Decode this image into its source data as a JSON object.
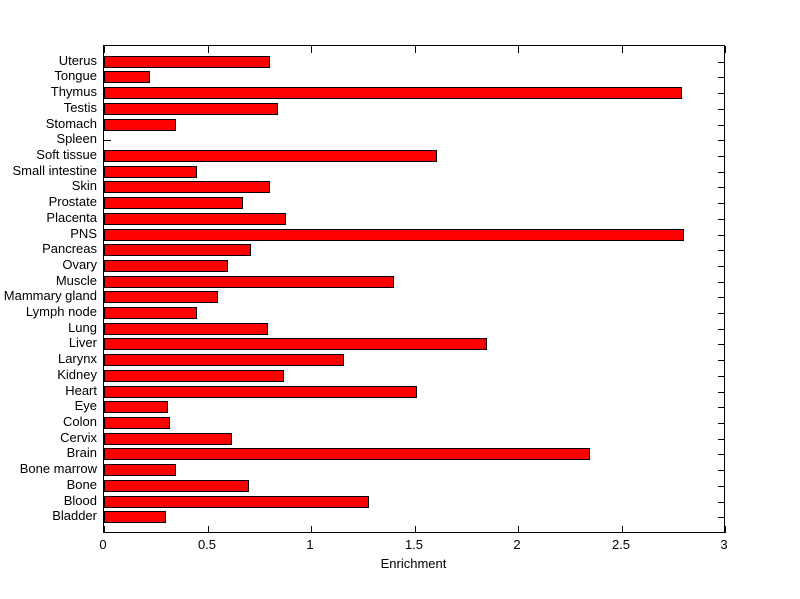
{
  "chart_data": {
    "type": "bar",
    "orientation": "horizontal",
    "title": "",
    "xlabel": "Enrichment",
    "ylabel": "",
    "xlim": [
      0,
      3
    ],
    "xticks": [
      0,
      0.5,
      1,
      1.5,
      2,
      2.5,
      3
    ],
    "xtick_labels": [
      "0",
      "0.5",
      "1",
      "1.5",
      "2",
      "2.5",
      "3"
    ],
    "grid": false,
    "legend_position": "none",
    "bar_color": "#ff0000",
    "bar_edge_color": "#000000",
    "axis_color": "#000000",
    "background_color": "#ffffff",
    "categories": [
      "Uterus",
      "Tongue",
      "Thymus",
      "Testis",
      "Stomach",
      "Spleen",
      "Soft tissue",
      "Small intestine",
      "Skin",
      "Prostate",
      "Placenta",
      "PNS",
      "Pancreas",
      "Ovary",
      "Muscle",
      "Mammary gland",
      "Lymph node",
      "Lung",
      "Liver",
      "Larynx",
      "Kidney",
      "Heart",
      "Eye",
      "Colon",
      "Cervix",
      "Brain",
      "Bone marrow",
      "Bone",
      "Blood",
      "Bladder"
    ],
    "values": [
      0.8,
      0.22,
      2.79,
      0.84,
      0.35,
      0,
      1.61,
      0.45,
      0.8,
      0.67,
      0.88,
      2.8,
      0.71,
      0.6,
      1.4,
      0.55,
      0.45,
      0.79,
      1.85,
      1.16,
      0.87,
      1.51,
      0.31,
      0.32,
      0.62,
      2.35,
      0.35,
      0.7,
      1.28,
      0.3
    ]
  }
}
